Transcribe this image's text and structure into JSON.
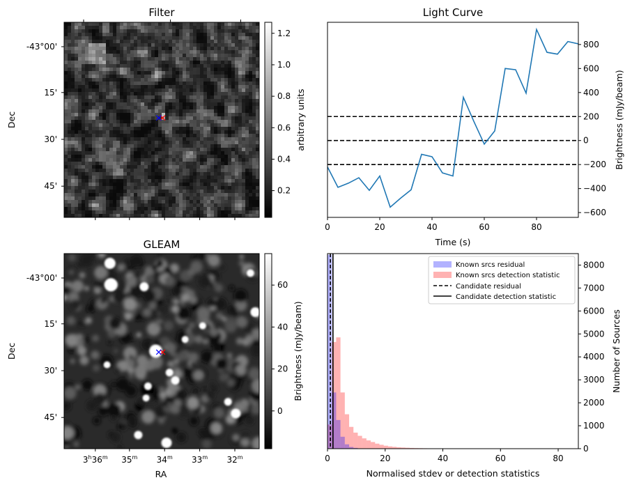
{
  "chart_data": [
    {
      "type": "heatmap",
      "panel": "filter",
      "title": "Filter",
      "ylabel": "Dec",
      "yticks": [
        "-43°00'",
        "15'",
        "30'",
        "45'"
      ],
      "colorbar": {
        "label": "arbitrary units",
        "range": [
          0.03,
          1.27
        ],
        "ticks": [
          "0.2",
          "0.4",
          "0.6",
          "0.8",
          "1.0",
          "1.2"
        ],
        "tick_values": [
          0.2,
          0.4,
          0.6,
          0.8,
          1.0,
          1.2
        ],
        "colormap": "gray"
      },
      "grid_size": [
        56,
        56
      ],
      "markers": [
        {
          "symbol": "x",
          "color": "#ff0000",
          "u": 0.505,
          "v": 0.49
        },
        {
          "symbol": "x",
          "color": "#0000ff",
          "u": 0.485,
          "v": 0.49
        }
      ]
    },
    {
      "type": "line",
      "panel": "light-curve",
      "title": "Light Curve",
      "xlabel": "Time (s)",
      "ylabel": "Brightness (mJy/beam)",
      "xlim": [
        0,
        96
      ],
      "ylim": [
        -640,
        985
      ],
      "xticks": [
        0,
        20,
        40,
        60,
        80
      ],
      "yticks": [
        -600,
        -400,
        -200,
        0,
        200,
        400,
        600,
        800
      ],
      "y_axis_side": "right",
      "color": "#1f77b4",
      "x": [
        0,
        4,
        8,
        12,
        16,
        20,
        24,
        28,
        32,
        36,
        40,
        44,
        48,
        52,
        56,
        60,
        64,
        68,
        72,
        76,
        80,
        84,
        88,
        92,
        96
      ],
      "y": [
        -220,
        -390,
        -355,
        -310,
        -415,
        -295,
        -555,
        -480,
        -410,
        -115,
        -135,
        -270,
        -295,
        360,
        160,
        -30,
        80,
        600,
        590,
        395,
        925,
        735,
        720,
        825,
        805
      ],
      "hlines": [
        {
          "y": 200,
          "style": "dashed",
          "color": "#000000"
        },
        {
          "y": 0,
          "style": "dashed",
          "color": "#000000"
        },
        {
          "y": -200,
          "style": "dashed",
          "color": "#000000"
        }
      ]
    },
    {
      "type": "heatmap",
      "panel": "gleam",
      "title": "GLEAM",
      "xlabel": "RA",
      "ylabel": "Dec",
      "yticks": [
        "-43°00'",
        "15'",
        "30'",
        "45'"
      ],
      "xticks": [
        {
          "main": "3",
          "sup1": "h",
          "mid": "36",
          "sup2": "m"
        },
        {
          "main": "35",
          "sup2": "m"
        },
        {
          "main": "34",
          "sup2": "m"
        },
        {
          "main": "33",
          "sup2": "m"
        },
        {
          "main": "32",
          "sup2": "m"
        }
      ],
      "colorbar": {
        "label": "Brightness (mJy/beam)",
        "range": [
          -18,
          75
        ],
        "ticks": [
          "0",
          "20",
          "40",
          "60"
        ],
        "tick_values": [
          0,
          20,
          40,
          60
        ],
        "colormap": "gray"
      },
      "markers": [
        {
          "symbol": "x",
          "color": "#ff0000",
          "u": 0.505,
          "v": 0.505
        },
        {
          "symbol": "x",
          "color": "#0000ff",
          "u": 0.485,
          "v": 0.505
        }
      ]
    },
    {
      "type": "bar",
      "panel": "histogram",
      "xlabel": "Normalised stdev or detection statistics",
      "ylabel": "Number of Sources",
      "xlim": [
        0,
        87
      ],
      "ylim": [
        0,
        8500
      ],
      "xticks": [
        0,
        20,
        40,
        60,
        80
      ],
      "yticks": [
        0,
        1000,
        2000,
        3000,
        4000,
        5000,
        6000,
        7000,
        8000
      ],
      "y_axis_side": "right",
      "bin_width": 1.5,
      "legend_position": "top-right",
      "series": [
        {
          "name": "Known srcs residual",
          "color": "#0000ff",
          "alpha": 0.3,
          "bin_start": 0,
          "values": [
            8450,
            2450,
            1250,
            520,
            190,
            75,
            35,
            15,
            5
          ]
        },
        {
          "name": "Known srcs detection statistic",
          "color": "#ff0000",
          "alpha": 0.3,
          "bin_start": 0,
          "values": [
            1050,
            4650,
            4850,
            2450,
            1500,
            950,
            700,
            560,
            450,
            360,
            290,
            220,
            170,
            130,
            100,
            80,
            60,
            50,
            40,
            32,
            26,
            22,
            18,
            15,
            12,
            10,
            9,
            8,
            7,
            6,
            5,
            5,
            4,
            4,
            3,
            3,
            3,
            2,
            2,
            2,
            2,
            2,
            1,
            1,
            1,
            1,
            1,
            1,
            1,
            1,
            1
          ]
        }
      ],
      "vlines": [
        {
          "name": "Candidate residual",
          "x": 1.0,
          "style": "dashed",
          "color": "#000000"
        },
        {
          "name": "Candidate detection statistic",
          "x": 1.9,
          "style": "solid",
          "color": "#000000"
        }
      ]
    }
  ]
}
